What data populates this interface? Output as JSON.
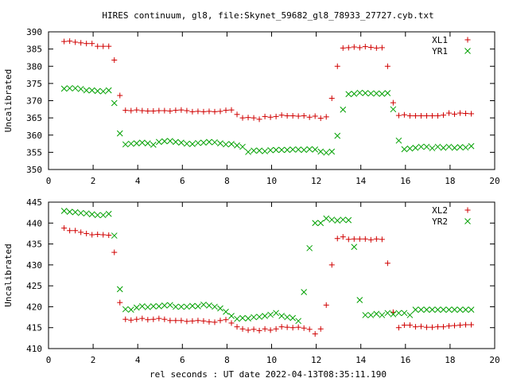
{
  "page": {
    "title": "HIRES continuum, gl8, file:Skynet_59682_gl8_78933_27727.cyb.txt",
    "xlabel": "rel seconds : UT date 2022-04-13T08:35:11.190"
  },
  "chart_data": [
    {
      "type": "scatter",
      "ylabel": "Uncalibrated",
      "xlim": [
        0,
        20
      ],
      "ylim": [
        350,
        390
      ],
      "xticks": [
        0,
        2,
        4,
        6,
        8,
        10,
        12,
        14,
        16,
        18,
        20
      ],
      "yticks": [
        350,
        355,
        360,
        365,
        370,
        375,
        380,
        385,
        390
      ],
      "grid": false,
      "legend": "top-right",
      "x": [
        0.7,
        0.95,
        1.2,
        1.45,
        1.7,
        1.95,
        2.2,
        2.45,
        2.7,
        2.95,
        3.2,
        3.45,
        3.7,
        3.95,
        4.2,
        4.45,
        4.7,
        4.95,
        5.2,
        5.45,
        5.7,
        5.95,
        6.2,
        6.45,
        6.7,
        6.95,
        7.2,
        7.45,
        7.7,
        7.95,
        8.2,
        8.45,
        8.7,
        8.95,
        9.2,
        9.45,
        9.7,
        9.95,
        10.2,
        10.45,
        10.7,
        10.95,
        11.2,
        11.45,
        11.7,
        11.95,
        12.2,
        12.45,
        12.7,
        12.95,
        13.2,
        13.45,
        13.7,
        13.95,
        14.2,
        14.45,
        14.7,
        14.95,
        15.2,
        15.45,
        15.7,
        15.95,
        16.2,
        16.45,
        16.7,
        16.95,
        17.2,
        17.45,
        17.7,
        17.95,
        18.2,
        18.45,
        18.7,
        18.95
      ],
      "series": [
        {
          "name": "XL1",
          "color": "#d00000",
          "marker": "plus",
          "values": [
            387.2,
            387.3,
            387.0,
            386.8,
            386.6,
            386.6,
            385.8,
            385.8,
            385.8,
            381.8,
            371.5,
            367.2,
            367.1,
            367.3,
            367.1,
            367.0,
            367.0,
            367.1,
            367.1,
            367.0,
            367.2,
            367.3,
            367.1,
            366.8,
            366.9,
            366.8,
            366.9,
            366.8,
            366.9,
            367.2,
            367.3,
            366.0,
            365.0,
            365.1,
            365.0,
            364.6,
            365.4,
            365.2,
            365.4,
            365.8,
            365.6,
            365.6,
            365.5,
            365.6,
            365.2,
            365.5,
            364.9,
            365.3,
            370.7,
            380.0,
            385.3,
            385.4,
            385.6,
            385.4,
            385.7,
            385.5,
            385.3,
            385.4,
            380.0,
            369.4,
            365.7,
            365.9,
            365.6,
            365.6,
            365.6,
            365.6,
            365.6,
            365.6,
            365.8,
            366.4,
            366.1,
            366.4,
            366.3,
            366.2
          ]
        },
        {
          "name": "YR1",
          "color": "#00a000",
          "marker": "cross",
          "values": [
            373.5,
            373.6,
            373.6,
            373.4,
            373.0,
            373.0,
            372.8,
            372.7,
            373.0,
            369.3,
            360.5,
            357.3,
            357.5,
            357.6,
            357.8,
            357.6,
            357.2,
            358.0,
            358.2,
            358.3,
            358.0,
            357.8,
            357.5,
            357.4,
            357.7,
            357.8,
            358.0,
            357.9,
            357.6,
            357.3,
            357.4,
            357.0,
            356.6,
            355.1,
            355.5,
            355.5,
            355.3,
            355.6,
            355.7,
            355.7,
            355.7,
            355.8,
            355.8,
            355.7,
            355.9,
            355.8,
            355.2,
            354.9,
            355.2,
            359.8,
            367.4,
            371.9,
            372.0,
            372.3,
            372.2,
            372.1,
            372.1,
            372.0,
            372.2,
            367.5,
            358.4,
            355.9,
            356.1,
            356.3,
            356.6,
            356.6,
            356.2,
            356.6,
            356.3,
            356.6,
            356.3,
            356.5,
            356.4,
            356.8
          ]
        }
      ]
    },
    {
      "type": "scatter",
      "ylabel": "Uncalibrated",
      "xlim": [
        0,
        20
      ],
      "ylim": [
        410,
        445
      ],
      "xticks": [
        0,
        2,
        4,
        6,
        8,
        10,
        12,
        14,
        16,
        18,
        20
      ],
      "yticks": [
        410,
        415,
        420,
        425,
        430,
        435,
        440,
        445
      ],
      "grid": false,
      "legend": "top-right",
      "x": [
        0.7,
        0.95,
        1.2,
        1.45,
        1.7,
        1.95,
        2.2,
        2.45,
        2.7,
        2.95,
        3.2,
        3.45,
        3.7,
        3.95,
        4.2,
        4.45,
        4.7,
        4.95,
        5.2,
        5.45,
        5.7,
        5.95,
        6.2,
        6.45,
        6.7,
        6.95,
        7.2,
        7.45,
        7.7,
        7.95,
        8.2,
        8.45,
        8.7,
        8.95,
        9.2,
        9.45,
        9.7,
        9.95,
        10.2,
        10.45,
        10.7,
        10.95,
        11.2,
        11.45,
        11.7,
        11.95,
        12.2,
        12.45,
        12.7,
        12.95,
        13.2,
        13.45,
        13.7,
        13.95,
        14.2,
        14.45,
        14.7,
        14.95,
        15.2,
        15.45,
        15.7,
        15.95,
        16.2,
        16.45,
        16.7,
        16.95,
        17.2,
        17.45,
        17.7,
        17.95,
        18.2,
        18.45,
        18.7,
        18.95
      ],
      "series": [
        {
          "name": "XL2",
          "color": "#d00000",
          "marker": "plus",
          "values": [
            438.8,
            438.2,
            438.2,
            437.8,
            437.5,
            437.2,
            437.3,
            437.2,
            437.1,
            433.0,
            421.0,
            417.0,
            416.8,
            417.0,
            417.2,
            416.9,
            417.0,
            417.2,
            417.0,
            416.7,
            416.7,
            416.7,
            416.5,
            416.6,
            416.7,
            416.6,
            416.4,
            416.3,
            416.7,
            416.9,
            416.1,
            415.2,
            414.7,
            414.4,
            414.6,
            414.3,
            414.7,
            414.4,
            414.7,
            415.2,
            415.1,
            415.0,
            415.1,
            414.9,
            414.6,
            413.5,
            414.7,
            420.4,
            430.0,
            436.3,
            436.7,
            436.1,
            436.2,
            436.2,
            436.2,
            436.0,
            436.2,
            436.1,
            430.4,
            418.7,
            415.0,
            415.6,
            415.6,
            415.2,
            415.3,
            415.1,
            415.1,
            415.2,
            415.2,
            415.4,
            415.5,
            415.6,
            415.7,
            415.7
          ]
        },
        {
          "name": "YR2",
          "color": "#00a000",
          "marker": "cross",
          "values": [
            442.9,
            442.7,
            442.6,
            442.4,
            442.3,
            442.1,
            441.9,
            441.9,
            442.2,
            437.0,
            424.2,
            419.4,
            419.3,
            419.8,
            420.1,
            419.9,
            420.1,
            420.1,
            420.3,
            420.4,
            420.0,
            420.0,
            420.0,
            420.2,
            420.1,
            420.5,
            420.3,
            420.0,
            419.6,
            418.8,
            417.8,
            417.1,
            417.3,
            417.2,
            417.5,
            417.6,
            417.8,
            418.1,
            418.5,
            417.8,
            417.5,
            417.3,
            416.6,
            423.5,
            434.0,
            440.0,
            440.0,
            441.1,
            440.8,
            440.6,
            440.8,
            440.7,
            434.3,
            421.6,
            418.0,
            418.0,
            418.3,
            418.0,
            418.5,
            418.2,
            418.5,
            418.5,
            418.0,
            419.3,
            419.3,
            419.3,
            419.3,
            419.3,
            419.3,
            419.3,
            419.3,
            419.3,
            419.3,
            419.3
          ]
        }
      ]
    }
  ]
}
